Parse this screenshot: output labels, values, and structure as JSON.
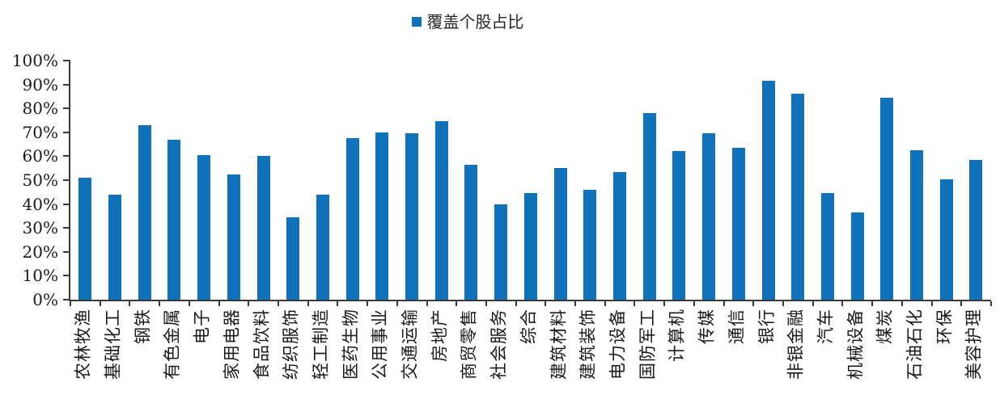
{
  "legend": {
    "label": "覆盖个股占比",
    "marker_color": "#1072BB"
  },
  "chart_data": {
    "type": "bar",
    "title": "",
    "xlabel": "",
    "ylabel": "",
    "series_name": "覆盖个股占比",
    "categories": [
      "农林牧渔",
      "基础化工",
      "钢铁",
      "有色金属",
      "电子",
      "家用电器",
      "食品饮料",
      "纺织服饰",
      "轻工制造",
      "医药生物",
      "公用事业",
      "交通运输",
      "房地产",
      "商贸零售",
      "社会服务",
      "综合",
      "建筑材料",
      "建筑装饰",
      "电力设备",
      "国防军工",
      "计算机",
      "传媒",
      "通信",
      "银行",
      "非银金融",
      "汽车",
      "机械设备",
      "煤炭",
      "石油石化",
      "环保",
      "美容护理"
    ],
    "values": [
      51,
      44,
      73,
      67,
      60.5,
      52.5,
      60,
      34.5,
      44,
      67.5,
      70,
      69.5,
      74.5,
      56.5,
      40,
      44.5,
      55,
      46,
      53.5,
      78,
      62,
      69.5,
      63.5,
      91.5,
      86,
      44.5,
      36.5,
      84.5,
      62.5,
      50.5,
      58.5
    ],
    "ylim": [
      0,
      100
    ],
    "ytick_step": 10,
    "ytick_labels": [
      "0%",
      "10%",
      "20%",
      "30%",
      "40%",
      "50%",
      "60%",
      "70%",
      "80%",
      "90%",
      "100%"
    ],
    "bar_color": "#1072BB",
    "axis_color": "#3a3a3a",
    "grid": false,
    "legend_position": "top-center",
    "xlabel_rotation_deg": -90
  }
}
